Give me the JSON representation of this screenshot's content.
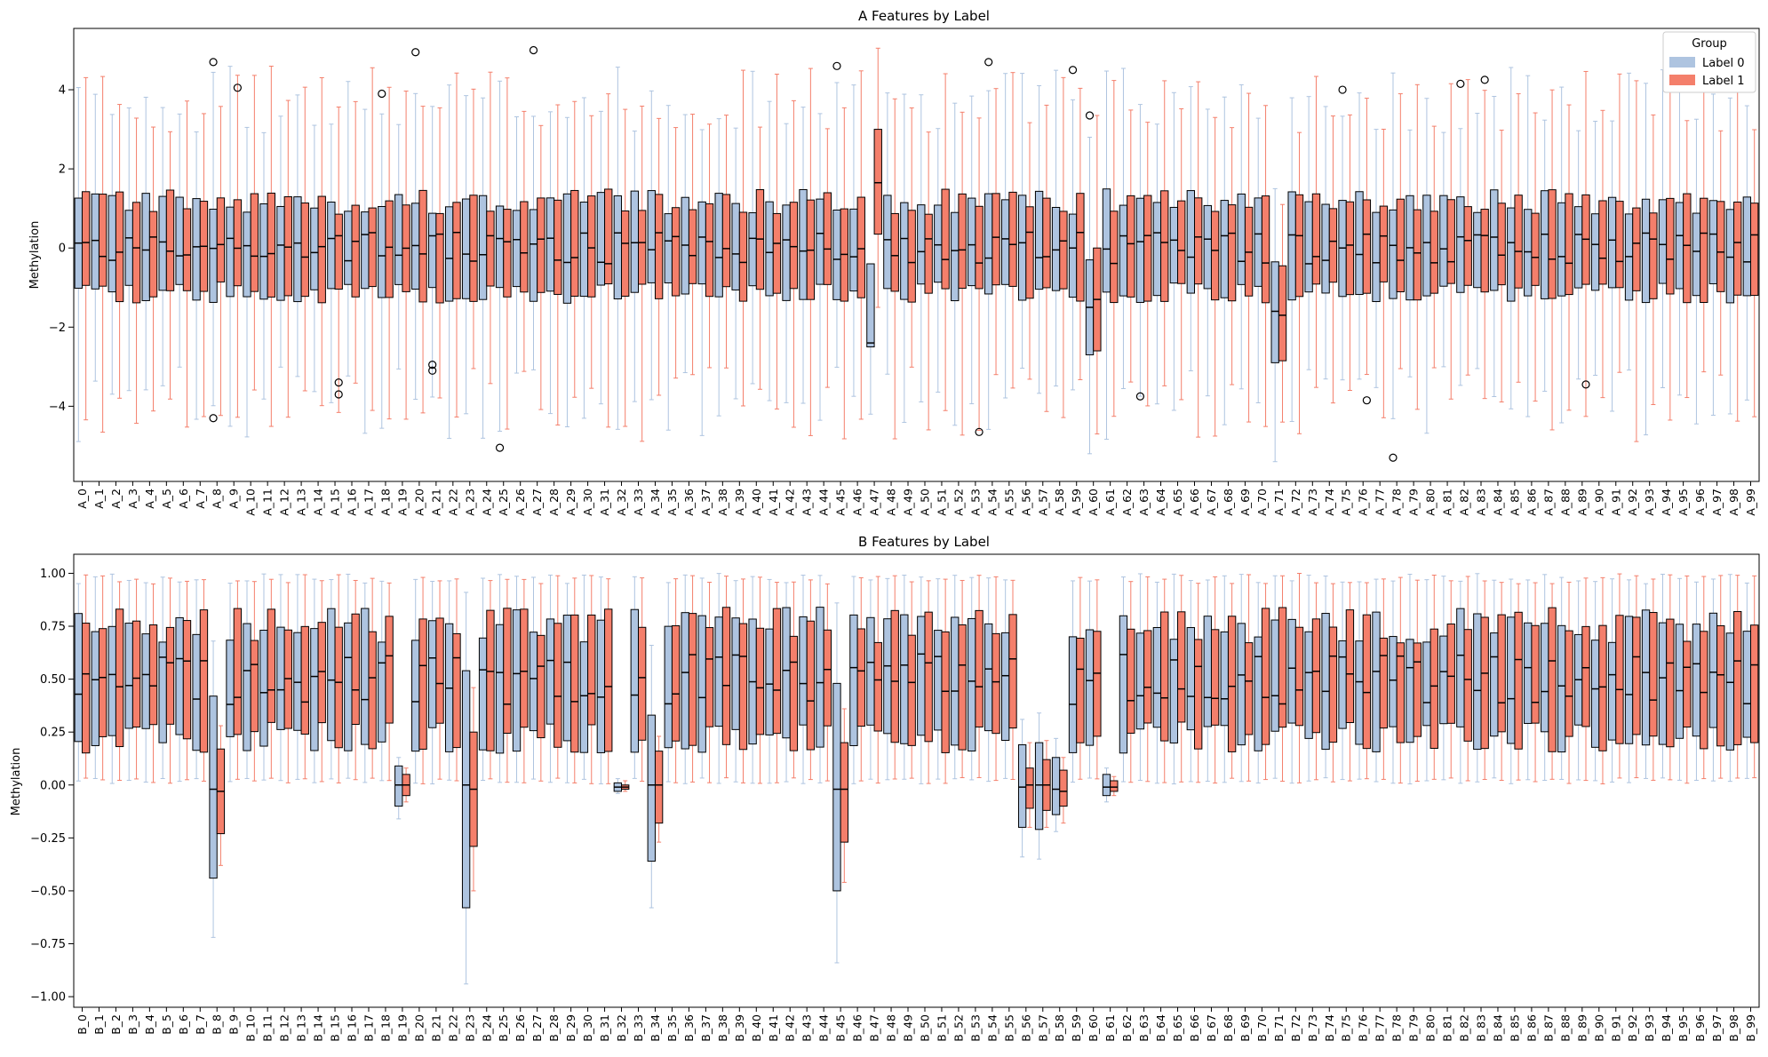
{
  "chart_data": [
    {
      "type": "box",
      "title": "A Features by Label",
      "xlabel": "",
      "ylabel": "Methylation",
      "ylim": [
        -5.9,
        5.55
      ],
      "yticks": [
        -4,
        -2,
        0,
        2,
        4
      ],
      "yticklabels": [
        "−4",
        "−2",
        "0",
        "2",
        "4"
      ],
      "grid": false,
      "legend": {
        "title": "Group",
        "placement": "top-right",
        "entries": [
          "Label 0",
          "Label 1"
        ]
      },
      "colors": {
        "label0": "#aec4e0",
        "label1": "#f47f6b",
        "label0_whisker": "#aec4e0",
        "label1_whisker": "#f47f6b"
      },
      "categories": [
        "A_0",
        "A_1",
        "A_2",
        "A_3",
        "A_4",
        "A_5",
        "A_6",
        "A_7",
        "A_8",
        "A_9",
        "A_10",
        "A_11",
        "A_12",
        "A_13",
        "A_14",
        "A_15",
        "A_16",
        "A_17",
        "A_18",
        "A_19",
        "A_20",
        "A_21",
        "A_22",
        "A_23",
        "A_24",
        "A_25",
        "A_26",
        "A_27",
        "A_28",
        "A_29",
        "A_30",
        "A_31",
        "A_32",
        "A_33",
        "A_34",
        "A_35",
        "A_36",
        "A_37",
        "A_38",
        "A_39",
        "A_40",
        "A_41",
        "A_42",
        "A_43",
        "A_44",
        "A_45",
        "A_46",
        "A_47",
        "A_48",
        "A_49",
        "A_50",
        "A_51",
        "A_52",
        "A_53",
        "A_54",
        "A_55",
        "A_56",
        "A_57",
        "A_58",
        "A_59",
        "A_60",
        "A_61",
        "A_62",
        "A_63",
        "A_64",
        "A_65",
        "A_66",
        "A_67",
        "A_68",
        "A_69",
        "A_70",
        "A_71",
        "A_72",
        "A_73",
        "A_74",
        "A_75",
        "A_76",
        "A_77",
        "A_78",
        "A_79",
        "A_80",
        "A_81",
        "A_82",
        "A_83",
        "A_84",
        "A_85",
        "A_86",
        "A_87",
        "A_88",
        "A_89",
        "A_90",
        "A_91",
        "A_92",
        "A_93",
        "A_94",
        "A_95",
        "A_96",
        "A_97",
        "A_98",
        "A_99"
      ],
      "special": {
        "A_47": {
          "s0": [
            -4.2,
            -2.5,
            -2.4,
            -0.4,
            -0.4
          ],
          "s1": [
            -1.5,
            0.35,
            1.65,
            3.0,
            5.05
          ]
        },
        "A_60": {
          "s0": [
            -5.2,
            -2.7,
            -1.5,
            -0.3,
            2.8
          ],
          "s1": [
            -4.7,
            -2.6,
            -1.3,
            0.0,
            3.35
          ]
        },
        "A_71": {
          "s0": [
            -5.4,
            -2.9,
            -1.6,
            -0.35,
            1.5
          ],
          "s1": [
            -4.4,
            -2.85,
            -1.7,
            -0.45,
            1.1
          ]
        }
      },
      "outliers": [
        {
          "x": "A_8",
          "g": 0,
          "v": 4.7
        },
        {
          "x": "A_8",
          "g": 0,
          "v": -4.3
        },
        {
          "x": "A_9",
          "g": 1,
          "v": 4.05
        },
        {
          "x": "A_15",
          "g": 1,
          "v": -3.4
        },
        {
          "x": "A_15",
          "g": 1,
          "v": -3.7
        },
        {
          "x": "A_18",
          "g": 0,
          "v": 3.9
        },
        {
          "x": "A_20",
          "g": 0,
          "v": 4.95
        },
        {
          "x": "A_21",
          "g": 0,
          "v": -2.95
        },
        {
          "x": "A_21",
          "g": 0,
          "v": -3.1
        },
        {
          "x": "A_25",
          "g": 0,
          "v": -5.05
        },
        {
          "x": "A_27",
          "g": 0,
          "v": 5.0
        },
        {
          "x": "A_45",
          "g": 0,
          "v": 4.6
        },
        {
          "x": "A_53",
          "g": 1,
          "v": -4.65
        },
        {
          "x": "A_54",
          "g": 0,
          "v": 4.7
        },
        {
          "x": "A_59",
          "g": 0,
          "v": 4.5
        },
        {
          "x": "A_60",
          "g": 0,
          "v": 3.35
        },
        {
          "x": "A_63",
          "g": 0,
          "v": -3.75
        },
        {
          "x": "A_75",
          "g": 0,
          "v": 4.0
        },
        {
          "x": "A_76",
          "g": 1,
          "v": -3.85
        },
        {
          "x": "A_78",
          "g": 0,
          "v": -5.3
        },
        {
          "x": "A_82",
          "g": 0,
          "v": 4.15
        },
        {
          "x": "A_83",
          "g": 1,
          "v": 4.25
        },
        {
          "x": "A_89",
          "g": 1,
          "v": -3.45
        }
      ]
    },
    {
      "type": "box",
      "title": "B Features by Label",
      "xlabel": "",
      "ylabel": "Methylation",
      "ylim": [
        -1.05,
        1.09
      ],
      "yticks": [
        -1.0,
        -0.75,
        -0.5,
        -0.25,
        0.0,
        0.25,
        0.5,
        0.75,
        1.0
      ],
      "yticklabels": [
        "−1.00",
        "−0.75",
        "−0.50",
        "−0.25",
        "0.00",
        "0.25",
        "0.50",
        "0.75",
        "1.00"
      ],
      "grid": false,
      "colors": {
        "label0": "#aec4e0",
        "label1": "#f47f6b",
        "label0_whisker": "#aec4e0",
        "label1_whisker": "#f47f6b"
      },
      "categories": [
        "B_0",
        "B_1",
        "B_2",
        "B_3",
        "B_4",
        "B_5",
        "B_6",
        "B_7",
        "B_8",
        "B_9",
        "B_10",
        "B_11",
        "B_12",
        "B_13",
        "B_14",
        "B_15",
        "B_16",
        "B_17",
        "B_18",
        "B_19",
        "B_20",
        "B_21",
        "B_22",
        "B_23",
        "B_24",
        "B_25",
        "B_26",
        "B_27",
        "B_28",
        "B_29",
        "B_30",
        "B_31",
        "B_32",
        "B_33",
        "B_34",
        "B_35",
        "B_36",
        "B_37",
        "B_38",
        "B_39",
        "B_40",
        "B_41",
        "B_42",
        "B_43",
        "B_44",
        "B_45",
        "B_46",
        "B_47",
        "B_48",
        "B_49",
        "B_50",
        "B_51",
        "B_52",
        "B_53",
        "B_54",
        "B_55",
        "B_56",
        "B_57",
        "B_58",
        "B_59",
        "B_60",
        "B_61",
        "B_62",
        "B_63",
        "B_64",
        "B_65",
        "B_66",
        "B_67",
        "B_68",
        "B_69",
        "B_70",
        "B_71",
        "B_72",
        "B_73",
        "B_74",
        "B_75",
        "B_76",
        "B_77",
        "B_78",
        "B_79",
        "B_80",
        "B_81",
        "B_82",
        "B_83",
        "B_84",
        "B_85",
        "B_86",
        "B_87",
        "B_88",
        "B_89",
        "B_90",
        "B_91",
        "B_92",
        "B_93",
        "B_94",
        "B_95",
        "B_96",
        "B_97",
        "B_98",
        "B_99"
      ],
      "special": {
        "B_8": {
          "s0": [
            -0.72,
            -0.44,
            -0.02,
            0.42,
            0.68
          ],
          "s1": [
            -0.38,
            -0.23,
            -0.03,
            0.17,
            0.28
          ]
        },
        "B_19": {
          "s0": [
            -0.16,
            -0.1,
            0.0,
            0.09,
            0.13
          ],
          "s1": [
            -0.08,
            -0.05,
            0.0,
            0.05,
            0.08
          ]
        },
        "B_23": {
          "s0": [
            -0.94,
            -0.58,
            0.0,
            0.54,
            0.91
          ],
          "s1": [
            -0.5,
            -0.29,
            -0.02,
            0.25,
            0.46
          ]
        },
        "B_32": {
          "s0": [
            -0.04,
            -0.03,
            -0.01,
            0.01,
            0.03
          ],
          "s1": [
            -0.03,
            -0.02,
            -0.01,
            0.0,
            0.02
          ]
        },
        "B_34": {
          "s0": [
            -0.58,
            -0.36,
            0.0,
            0.33,
            0.66
          ],
          "s1": [
            -0.27,
            -0.18,
            0.0,
            0.16,
            0.23
          ]
        },
        "B_45": {
          "s0": [
            -0.84,
            -0.5,
            -0.02,
            0.48,
            0.86
          ],
          "s1": [
            -0.46,
            -0.27,
            -0.02,
            0.2,
            0.36
          ]
        },
        "B_56": {
          "s0": [
            -0.34,
            -0.2,
            -0.01,
            0.19,
            0.31
          ],
          "s1": [
            -0.2,
            -0.11,
            0.0,
            0.08,
            0.2
          ]
        },
        "B_57": {
          "s0": [
            -0.35,
            -0.21,
            0.0,
            0.2,
            0.34
          ],
          "s1": [
            -0.2,
            -0.12,
            0.0,
            0.12,
            0.21
          ]
        },
        "B_58": {
          "s0": [
            -0.22,
            -0.14,
            -0.02,
            0.13,
            0.22
          ],
          "s1": [
            -0.18,
            -0.1,
            -0.03,
            0.07,
            0.13
          ]
        },
        "B_61": {
          "s0": [
            -0.08,
            -0.05,
            -0.01,
            0.05,
            0.08
          ],
          "s1": [
            -0.05,
            -0.03,
            -0.01,
            0.02,
            0.04
          ]
        }
      }
    }
  ]
}
